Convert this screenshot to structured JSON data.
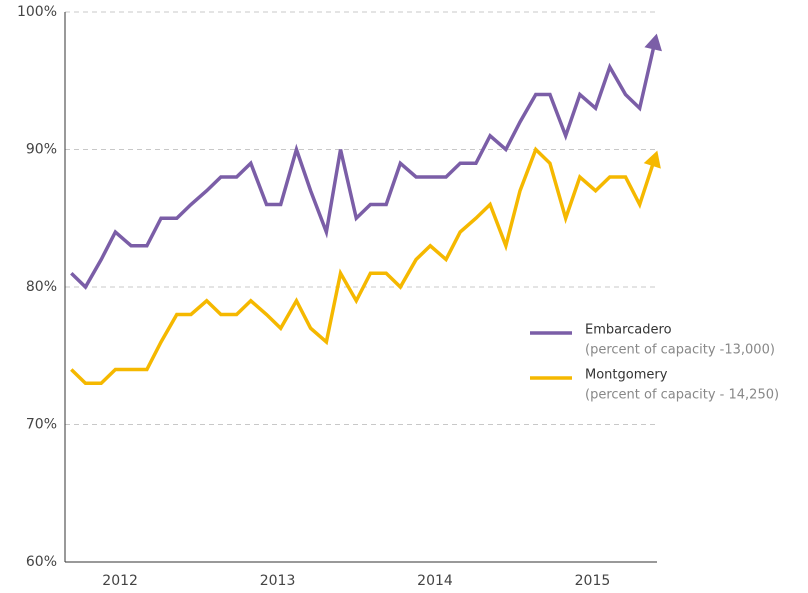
{
  "chart_data": {
    "type": "line",
    "x": [
      2011.69,
      2011.78,
      2011.88,
      2011.97,
      2012.07,
      2012.17,
      2012.26,
      2012.36,
      2012.45,
      2012.55,
      2012.64,
      2012.74,
      2012.83,
      2012.93,
      2013.02,
      2013.12,
      2013.21,
      2013.31,
      2013.4,
      2013.5,
      2013.59,
      2013.69,
      2013.78,
      2013.88,
      2013.97,
      2014.07,
      2014.16,
      2014.26,
      2014.35,
      2014.45,
      2014.54,
      2014.64,
      2014.73,
      2014.83,
      2014.92,
      2015.02,
      2015.11,
      2015.21,
      2015.3,
      2015.4
    ],
    "series": [
      {
        "name": "Embarcadero",
        "description": "(percent of capacity -13,000)",
        "color": "#7b5ea7",
        "values": [
          81,
          80,
          82,
          84,
          83,
          83,
          85,
          85,
          86,
          87,
          88,
          88,
          89,
          86,
          86,
          90,
          87,
          84,
          90,
          85,
          86,
          86,
          89,
          88,
          88,
          88,
          89,
          89,
          91,
          90,
          92,
          94,
          94,
          91,
          94,
          93,
          96,
          94,
          93,
          98
        ]
      },
      {
        "name": "Montgomery",
        "description": "(percent of capacity - 14,250)",
        "color": "#f5b800",
        "values": [
          74,
          73,
          73,
          74,
          74,
          74,
          76,
          78,
          78,
          79,
          78,
          78,
          79,
          78,
          77,
          79,
          77,
          76,
          81,
          79,
          81,
          81,
          80,
          82,
          83,
          82,
          84,
          85,
          86,
          83,
          87,
          90,
          89,
          85,
          88,
          87,
          88,
          88,
          86,
          89.5
        ]
      }
    ],
    "xlim": [
      2011.65,
      2015.41
    ],
    "xticks": [
      2012,
      2013,
      2014,
      2015
    ],
    "ylim": [
      60,
      100
    ],
    "yticks": [
      {
        "value": 60,
        "label": "60%"
      },
      {
        "value": 70,
        "label": "70%"
      },
      {
        "value": 80,
        "label": "80%"
      },
      {
        "value": 90,
        "label": "90%"
      },
      {
        "value": 100,
        "label": "100%"
      }
    ],
    "grid": true,
    "legend": "right"
  }
}
